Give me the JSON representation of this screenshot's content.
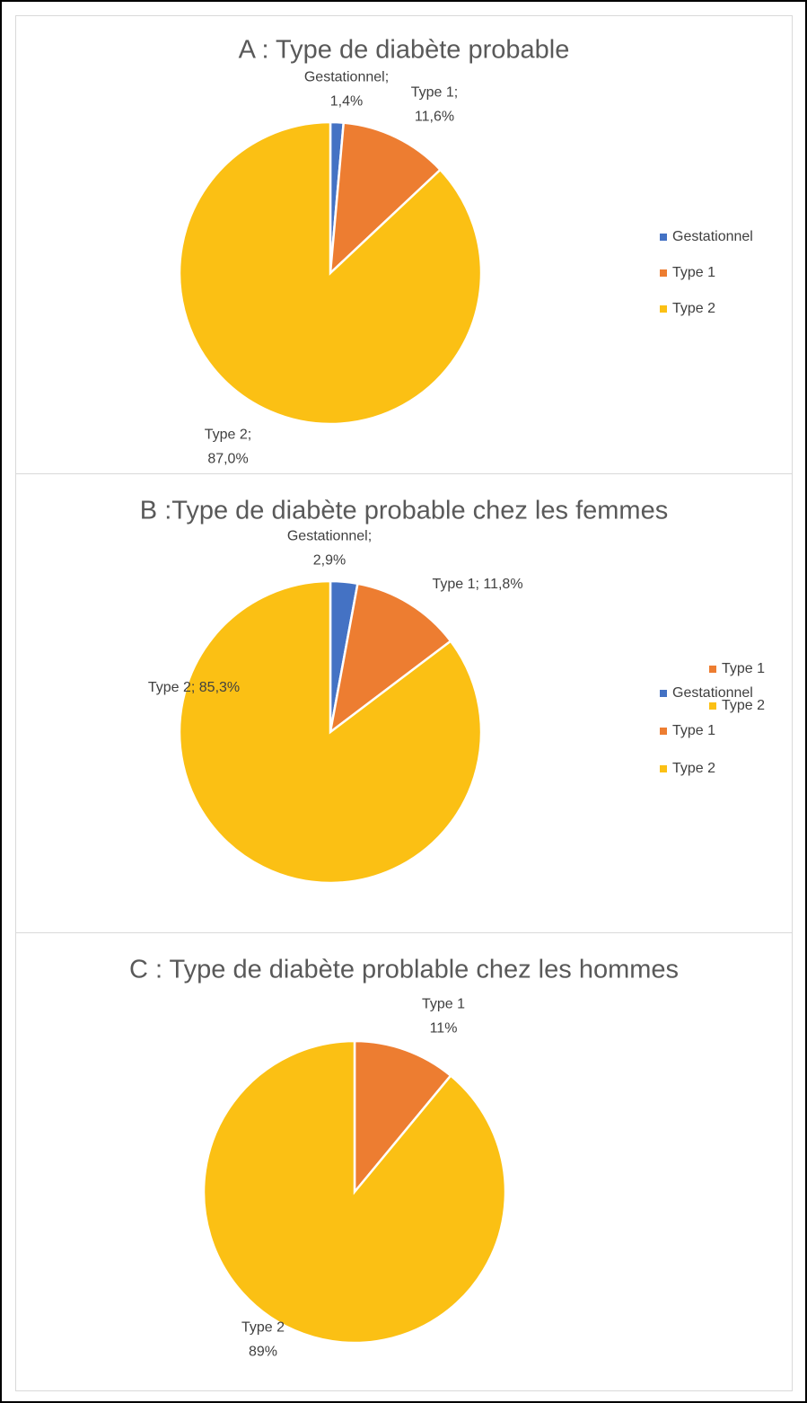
{
  "chart_data": [
    {
      "type": "pie",
      "title": "A : Type de diabète probable",
      "categories": [
        "Gestationnel",
        "Type 1",
        "Type 2"
      ],
      "values": [
        1.4,
        11.6,
        87.0
      ],
      "value_labels": [
        "Gestationnel;\n1,4%",
        "Type 1;\n11,6%",
        "Type 2;\n87,0%"
      ],
      "colors": [
        "#4472c4",
        "#ed7d31",
        "#fbc014"
      ],
      "legend": "right"
    },
    {
      "type": "pie",
      "title": "B :Type de diabète probable chez les femmes",
      "categories": [
        "Gestationnel",
        "Type 1",
        "Type 2"
      ],
      "values": [
        2.9,
        11.8,
        85.3
      ],
      "value_labels": [
        "Gestationnel;\n2,9%",
        "Type 1; 11,8%",
        "Type 2; 85,3%"
      ],
      "colors": [
        "#4472c4",
        "#ed7d31",
        "#fbc014"
      ],
      "legend": "right"
    },
    {
      "type": "pie",
      "title": "C : Type de diabète problable chez les hommes",
      "categories": [
        "Type 1",
        "Type 2"
      ],
      "values": [
        11,
        89
      ],
      "value_labels": [
        "Type 1\n11%",
        "Type 2\n89%"
      ],
      "colors": [
        "#ed7d31",
        "#fbc014"
      ],
      "legend": "right"
    }
  ]
}
